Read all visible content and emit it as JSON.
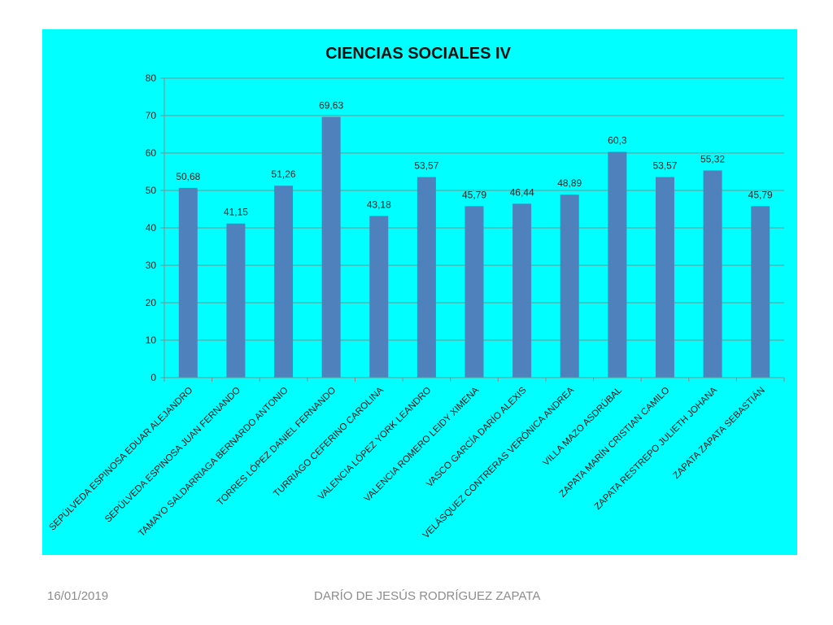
{
  "slide": {
    "footer_date": "16/01/2019",
    "footer_author": "DARÍO DE JESÚS RODRÍGUEZ ZAPATA"
  },
  "chart_data": {
    "type": "bar",
    "title": "CIENCIAS SOCIALES  IV",
    "xlabel": "",
    "ylabel": "",
    "ylim": [
      0,
      80
    ],
    "yticks": [
      0,
      10,
      20,
      30,
      40,
      50,
      60,
      70,
      80
    ],
    "grid": true,
    "legend": "none",
    "bar_color": "#4f81bd",
    "background_color": "#00ffff",
    "categories": [
      "SEPÚLVEDA ESPINOSA EDUAR ALEJANDRO",
      "SEPÚLVEDA ESPINOSA JUAN FERNANDO",
      "TAMAYO SALDARRIAGA BERNARDO ANTONIO",
      "TORRES LÓPEZ DANIEL FERNANDO",
      "TURRIAGO CEFERINO CAROLINA",
      "VALENCIA LÓPEZ YORK LEANDRO",
      "VALENCIA ROMERO LEIDY XIMENA",
      "VASCO GARCÍA DARÍO ALEXIS",
      "VELÁSQUEZ CONTRERAS VERÓNICA ANDREA",
      "VILLA MAZO ASDRÚBAL",
      "ZAPATA MARÍN CRISTIAN CAMILO",
      "ZAPATA RESTREPO JULIETH JOHANA",
      "ZAPATA ZAPATA SEBASTIÁN"
    ],
    "values": [
      50.68,
      41.15,
      51.26,
      69.63,
      43.18,
      53.57,
      45.79,
      46.44,
      48.89,
      60.3,
      53.57,
      55.32,
      45.79
    ],
    "data_labels": [
      "50,68",
      "41,15",
      "51,26",
      "69,63",
      "43,18",
      "53,57",
      "45,79",
      "46,44",
      "48,89",
      "60,3",
      "53,57",
      "55,32",
      "45,79"
    ]
  }
}
